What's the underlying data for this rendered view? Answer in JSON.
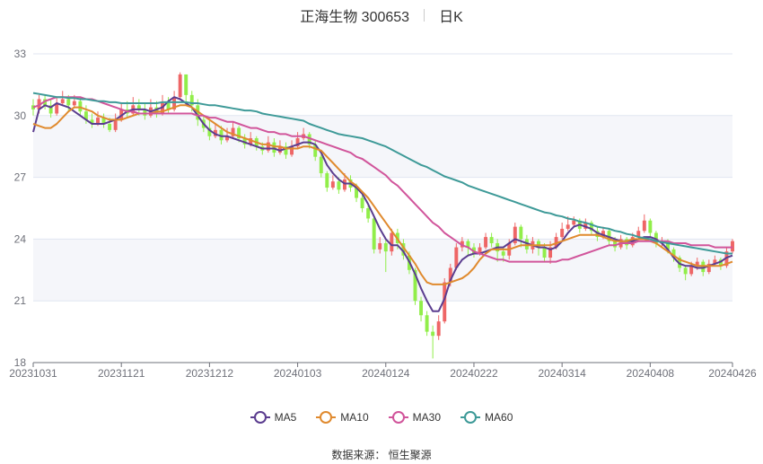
{
  "header": {
    "title": "正海生物 300653",
    "period": "日K"
  },
  "source": "数据来源： 恒生聚源",
  "colors": {
    "up": "#ee6666",
    "down": "#91ee4a",
    "band": "#f5f6fa",
    "grid": "#e0e6f1"
  },
  "chart_data": {
    "type": "candlestick",
    "ylim": [
      18,
      33
    ],
    "yticks": [
      "18",
      "21",
      "24",
      "27",
      "30",
      "33"
    ],
    "xticks": [
      {
        "label": "20231031",
        "index": 0
      },
      {
        "label": "20231121",
        "index": 15
      },
      {
        "label": "20231212",
        "index": 30
      },
      {
        "label": "20240103",
        "index": 45
      },
      {
        "label": "20240124",
        "index": 60
      },
      {
        "label": "20240222",
        "index": 75
      },
      {
        "label": "20240314",
        "index": 90
      },
      {
        "label": "20240408",
        "index": 105
      },
      {
        "label": "20240426",
        "index": 119
      }
    ],
    "legend": [
      {
        "name": "MA5",
        "color": "#5b3d8f"
      },
      {
        "name": "MA10",
        "color": "#e08a2e"
      },
      {
        "name": "MA30",
        "color": "#d1559b"
      },
      {
        "name": "MA60",
        "color": "#3e9a98"
      }
    ],
    "candles": [
      [
        30.5,
        30.3,
        30.8,
        30.0
      ],
      [
        30.3,
        30.8,
        31.0,
        30.1
      ],
      [
        30.8,
        30.5,
        31.0,
        30.3
      ],
      [
        30.5,
        30.1,
        30.8,
        29.9
      ],
      [
        30.1,
        30.6,
        30.9,
        30.0
      ],
      [
        30.6,
        30.8,
        31.2,
        30.5
      ],
      [
        30.8,
        30.5,
        31.0,
        30.2
      ],
      [
        30.5,
        30.7,
        31.0,
        30.4
      ],
      [
        30.7,
        30.2,
        30.9,
        30.0
      ],
      [
        30.2,
        29.8,
        30.5,
        29.6
      ],
      [
        29.8,
        29.6,
        30.1,
        29.4
      ],
      [
        29.6,
        29.9,
        30.2,
        29.5
      ],
      [
        29.9,
        29.6,
        30.1,
        29.4
      ],
      [
        29.6,
        29.3,
        29.9,
        29.2
      ],
      [
        29.3,
        29.8,
        30.1,
        29.2
      ],
      [
        29.8,
        30.3,
        30.6,
        29.7
      ],
      [
        30.3,
        30.1,
        30.7,
        29.9
      ],
      [
        30.1,
        30.5,
        30.9,
        30.0
      ],
      [
        30.5,
        30.3,
        30.8,
        30.0
      ],
      [
        30.3,
        30.0,
        30.6,
        29.8
      ],
      [
        30.0,
        30.4,
        30.8,
        29.9
      ],
      [
        30.4,
        30.1,
        30.7,
        29.9
      ],
      [
        30.1,
        30.6,
        31.0,
        30.0
      ],
      [
        30.6,
        30.3,
        30.9,
        30.1
      ],
      [
        30.3,
        30.9,
        31.2,
        30.2
      ],
      [
        30.9,
        32.0,
        32.1,
        30.8
      ],
      [
        32.0,
        31.0,
        32.0,
        30.5
      ],
      [
        31.0,
        30.5,
        31.2,
        30.2
      ],
      [
        30.5,
        29.8,
        30.8,
        29.5
      ],
      [
        29.8,
        29.4,
        30.0,
        29.2
      ],
      [
        29.4,
        29.0,
        29.8,
        28.8
      ],
      [
        29.0,
        29.3,
        29.6,
        28.9
      ],
      [
        29.3,
        28.8,
        29.5,
        28.6
      ],
      [
        28.8,
        29.0,
        29.4,
        28.7
      ],
      [
        29.0,
        29.4,
        29.7,
        28.9
      ],
      [
        29.4,
        28.9,
        29.5,
        28.7
      ],
      [
        28.9,
        28.6,
        29.1,
        28.4
      ],
      [
        28.6,
        28.9,
        29.2,
        28.5
      ],
      [
        28.9,
        28.5,
        29.0,
        28.3
      ],
      [
        28.5,
        28.3,
        28.7,
        28.1
      ],
      [
        28.3,
        28.7,
        29.0,
        28.2
      ],
      [
        28.7,
        28.2,
        28.9,
        28.0
      ],
      [
        28.2,
        28.5,
        28.8,
        28.1
      ],
      [
        28.5,
        28.1,
        28.7,
        27.9
      ],
      [
        28.1,
        28.5,
        28.8,
        28.0
      ],
      [
        28.5,
        28.9,
        29.2,
        28.4
      ],
      [
        28.9,
        29.1,
        29.4,
        28.8
      ],
      [
        29.1,
        28.6,
        29.2,
        28.4
      ],
      [
        28.6,
        28.0,
        28.8,
        27.8
      ],
      [
        28.0,
        27.2,
        28.1,
        27.0
      ],
      [
        27.2,
        26.5,
        27.3,
        26.3
      ],
      [
        26.5,
        26.8,
        27.1,
        26.4
      ],
      [
        26.8,
        26.4,
        27.0,
        26.2
      ],
      [
        26.4,
        26.9,
        27.2,
        26.3
      ],
      [
        26.9,
        26.5,
        27.1,
        26.3
      ],
      [
        26.5,
        26.0,
        26.7,
        25.8
      ],
      [
        26.0,
        25.5,
        26.2,
        25.3
      ],
      [
        25.5,
        25.0,
        25.7,
        24.8
      ],
      [
        25.0,
        23.5,
        25.1,
        23.3
      ],
      [
        23.5,
        23.8,
        24.1,
        23.3
      ],
      [
        23.8,
        23.4,
        24.0,
        22.4
      ],
      [
        23.4,
        24.3,
        24.5,
        23.2
      ],
      [
        24.3,
        23.8,
        24.5,
        23.5
      ],
      [
        23.8,
        23.2,
        24.0,
        23.0
      ],
      [
        23.2,
        22.5,
        23.4,
        22.3
      ],
      [
        22.5,
        21.0,
        22.6,
        20.8
      ],
      [
        21.0,
        20.3,
        21.2,
        20.0
      ],
      [
        20.3,
        19.5,
        20.5,
        19.3
      ],
      [
        19.5,
        19.3,
        19.8,
        18.2
      ],
      [
        19.3,
        20.0,
        20.3,
        19.1
      ],
      [
        20.0,
        21.9,
        22.1,
        19.9
      ],
      [
        21.9,
        22.6,
        22.8,
        21.7
      ],
      [
        22.6,
        23.6,
        23.8,
        22.5
      ],
      [
        23.6,
        23.9,
        24.1,
        23.4
      ],
      [
        23.9,
        23.6,
        24.0,
        23.2
      ],
      [
        23.6,
        23.3,
        23.8,
        23.1
      ],
      [
        23.3,
        23.6,
        23.8,
        23.2
      ],
      [
        23.6,
        24.1,
        24.3,
        23.5
      ],
      [
        24.1,
        23.8,
        24.3,
        23.6
      ],
      [
        23.8,
        23.4,
        24.0,
        22.9
      ],
      [
        23.4,
        23.2,
        23.6,
        22.9
      ],
      [
        23.2,
        23.8,
        24.0,
        23.0
      ],
      [
        23.8,
        24.6,
        24.8,
        23.7
      ],
      [
        24.6,
        24.0,
        24.7,
        23.6
      ],
      [
        24.0,
        23.5,
        24.2,
        23.3
      ],
      [
        23.5,
        23.9,
        24.1,
        23.3
      ],
      [
        23.9,
        23.6,
        24.0,
        23.2
      ],
      [
        23.6,
        23.1,
        23.8,
        22.9
      ],
      [
        23.1,
        23.6,
        23.9,
        22.8
      ],
      [
        23.6,
        24.1,
        24.3,
        23.5
      ],
      [
        24.1,
        24.5,
        24.8,
        24.0
      ],
      [
        24.5,
        24.7,
        25.1,
        24.4
      ],
      [
        24.7,
        24.9,
        25.1,
        24.6
      ],
      [
        24.9,
        24.5,
        25.0,
        24.3
      ],
      [
        24.5,
        24.8,
        25.0,
        24.4
      ],
      [
        24.8,
        24.4,
        24.9,
        24.2
      ],
      [
        24.4,
        24.1,
        24.6,
        23.9
      ],
      [
        24.1,
        24.4,
        24.6,
        24.0
      ],
      [
        24.4,
        23.9,
        24.5,
        23.7
      ],
      [
        23.9,
        23.6,
        24.1,
        23.4
      ],
      [
        23.6,
        24.0,
        24.2,
        23.5
      ],
      [
        24.0,
        23.7,
        24.1,
        23.5
      ],
      [
        23.7,
        24.1,
        24.3,
        23.6
      ],
      [
        24.1,
        24.4,
        24.6,
        24.0
      ],
      [
        24.4,
        24.9,
        25.2,
        24.3
      ],
      [
        24.9,
        24.3,
        25.0,
        24.1
      ],
      [
        24.3,
        23.8,
        24.4,
        23.6
      ],
      [
        23.8,
        23.9,
        24.1,
        23.6
      ],
      [
        23.9,
        23.5,
        24.0,
        23.3
      ],
      [
        23.5,
        23.1,
        23.6,
        22.9
      ],
      [
        23.1,
        22.6,
        23.2,
        22.4
      ],
      [
        22.6,
        22.3,
        22.7,
        22.0
      ],
      [
        22.3,
        22.7,
        22.9,
        22.2
      ],
      [
        22.7,
        22.9,
        23.1,
        22.5
      ],
      [
        22.9,
        22.4,
        23.0,
        22.2
      ],
      [
        22.4,
        22.8,
        23.0,
        22.3
      ],
      [
        22.8,
        23.0,
        23.2,
        22.7
      ],
      [
        23.0,
        22.7,
        23.1,
        22.5
      ],
      [
        22.7,
        23.4,
        23.6,
        22.6
      ],
      [
        23.4,
        23.9,
        24.0,
        23.3
      ]
    ],
    "ma5": [
      29.2,
      30.3,
      30.5,
      30.4,
      30.6,
      30.5,
      30.4,
      30.2,
      30.0,
      29.8,
      29.6,
      29.6,
      29.6,
      29.7,
      29.8,
      30.0,
      30.2,
      30.3,
      30.3,
      30.3,
      30.2,
      30.3,
      30.4,
      30.7,
      30.9,
      30.8,
      30.6,
      30.4,
      30.0,
      29.6,
      29.3,
      29.1,
      29.0,
      29.0,
      28.9,
      28.8,
      28.7,
      28.6,
      28.5,
      28.4,
      28.4,
      28.4,
      28.3,
      28.4,
      28.5,
      28.6,
      28.7,
      28.7,
      28.6,
      28.2,
      27.6,
      27.2,
      26.9,
      26.7,
      26.7,
      26.5,
      26.2,
      25.7,
      25.1,
      24.5,
      24.0,
      23.7,
      23.7,
      23.4,
      22.9,
      22.3,
      21.6,
      21.0,
      20.5,
      20.5,
      21.1,
      22.0,
      22.6,
      23.0,
      23.2,
      23.3,
      23.3,
      23.4,
      23.5,
      23.6,
      23.6,
      23.8,
      24.0,
      23.9,
      23.8,
      23.7,
      23.6,
      23.6,
      23.5,
      23.6,
      23.9,
      24.3,
      24.6,
      24.7,
      24.6,
      24.5,
      24.3,
      24.2,
      24.1,
      24.0,
      23.9,
      23.9,
      23.9,
      24.0,
      24.1,
      24.1,
      24.0,
      23.8,
      23.5,
      23.1,
      22.8,
      22.7,
      22.7,
      22.6,
      22.6,
      22.7,
      22.8,
      22.9,
      23.1,
      23.2
    ],
    "ma10": [
      29.6,
      29.5,
      29.4,
      29.4,
      29.6,
      29.9,
      30.2,
      30.4,
      30.4,
      30.3,
      30.2,
      30.0,
      29.9,
      29.8,
      29.8,
      29.8,
      29.9,
      30.0,
      30.1,
      30.1,
      30.1,
      30.2,
      30.2,
      30.3,
      30.4,
      30.5,
      30.5,
      30.4,
      30.2,
      30.0,
      29.8,
      29.6,
      29.4,
      29.2,
      29.1,
      29.0,
      28.9,
      28.8,
      28.7,
      28.6,
      28.6,
      28.5,
      28.5,
      28.4,
      28.4,
      28.4,
      28.5,
      28.5,
      28.4,
      28.3,
      28.0,
      27.7,
      27.4,
      27.1,
      26.8,
      26.6,
      26.3,
      26.0,
      25.6,
      25.2,
      24.8,
      24.4,
      24.0,
      23.6,
      23.2,
      22.8,
      22.3,
      21.9,
      21.8,
      21.8,
      21.8,
      21.9,
      22.0,
      22.1,
      22.3,
      22.6,
      23.0,
      23.3,
      23.5,
      23.5,
      23.5,
      23.5,
      23.6,
      23.7,
      23.7,
      23.7,
      23.7,
      23.7,
      23.7,
      23.8,
      23.9,
      24.0,
      24.1,
      24.2,
      24.2,
      24.2,
      24.2,
      24.1,
      24.0,
      23.9,
      23.9,
      23.9,
      24.0,
      24.0,
      24.0,
      23.9,
      23.8,
      23.6,
      23.4,
      23.2,
      23.0,
      22.9,
      22.8,
      22.7,
      22.7,
      22.7,
      22.7,
      22.7,
      22.8,
      22.9
    ],
    "ma30": [
      30.4,
      30.5,
      30.7,
      30.8,
      30.9,
      30.9,
      30.9,
      30.9,
      30.9,
      30.8,
      30.8,
      30.7,
      30.6,
      30.5,
      30.4,
      30.3,
      30.2,
      30.2,
      30.1,
      30.1,
      30.1,
      30.1,
      30.1,
      30.1,
      30.1,
      30.1,
      30.1,
      30.1,
      30.0,
      30.0,
      29.9,
      29.9,
      29.8,
      29.7,
      29.7,
      29.6,
      29.5,
      29.4,
      29.4,
      29.3,
      29.2,
      29.2,
      29.1,
      29.1,
      29.0,
      29.0,
      29.0,
      28.9,
      28.8,
      28.7,
      28.6,
      28.5,
      28.4,
      28.3,
      28.2,
      28.0,
      27.9,
      27.7,
      27.5,
      27.3,
      27.1,
      26.8,
      26.6,
      26.3,
      26.0,
      25.7,
      25.4,
      25.1,
      24.8,
      24.6,
      24.3,
      24.1,
      23.9,
      23.7,
      23.6,
      23.4,
      23.3,
      23.2,
      23.1,
      23.0,
      23.0,
      22.9,
      22.9,
      22.9,
      22.9,
      22.9,
      22.9,
      22.9,
      22.9,
      22.9,
      23.0,
      23.0,
      23.1,
      23.2,
      23.3,
      23.4,
      23.5,
      23.6,
      23.7,
      23.7,
      23.8,
      23.8,
      23.8,
      23.9,
      23.9,
      23.9,
      23.9,
      23.9,
      23.9,
      23.8,
      23.8,
      23.8,
      23.7,
      23.7,
      23.7,
      23.7,
      23.6,
      23.6,
      23.6,
      23.6
    ],
    "ma60": [
      31.1,
      31.05,
      31.0,
      30.95,
      30.9,
      30.9,
      30.85,
      30.85,
      30.8,
      30.8,
      30.75,
      30.7,
      30.7,
      30.65,
      30.65,
      30.6,
      30.6,
      30.6,
      30.6,
      30.6,
      30.6,
      30.6,
      30.65,
      30.65,
      30.65,
      30.65,
      30.65,
      30.6,
      30.6,
      30.55,
      30.5,
      30.5,
      30.45,
      30.4,
      30.35,
      30.3,
      30.25,
      30.25,
      30.2,
      30.1,
      30.05,
      30.0,
      29.95,
      29.9,
      29.85,
      29.8,
      29.75,
      29.6,
      29.5,
      29.4,
      29.3,
      29.2,
      29.1,
      29.05,
      29.0,
      28.95,
      28.9,
      28.8,
      28.7,
      28.6,
      28.5,
      28.35,
      28.2,
      28.05,
      27.9,
      27.75,
      27.6,
      27.5,
      27.35,
      27.2,
      27.05,
      26.95,
      26.85,
      26.75,
      26.6,
      26.5,
      26.4,
      26.3,
      26.2,
      26.1,
      26.0,
      25.9,
      25.8,
      25.7,
      25.6,
      25.5,
      25.4,
      25.3,
      25.25,
      25.15,
      25.1,
      25.0,
      24.95,
      24.85,
      24.8,
      24.7,
      24.6,
      24.55,
      24.5,
      24.4,
      24.35,
      24.25,
      24.2,
      24.1,
      24.05,
      24.0,
      23.9,
      23.85,
      23.8,
      23.75,
      23.7,
      23.65,
      23.6,
      23.55,
      23.5,
      23.45,
      23.4,
      23.35,
      23.3,
      23.3
    ]
  }
}
